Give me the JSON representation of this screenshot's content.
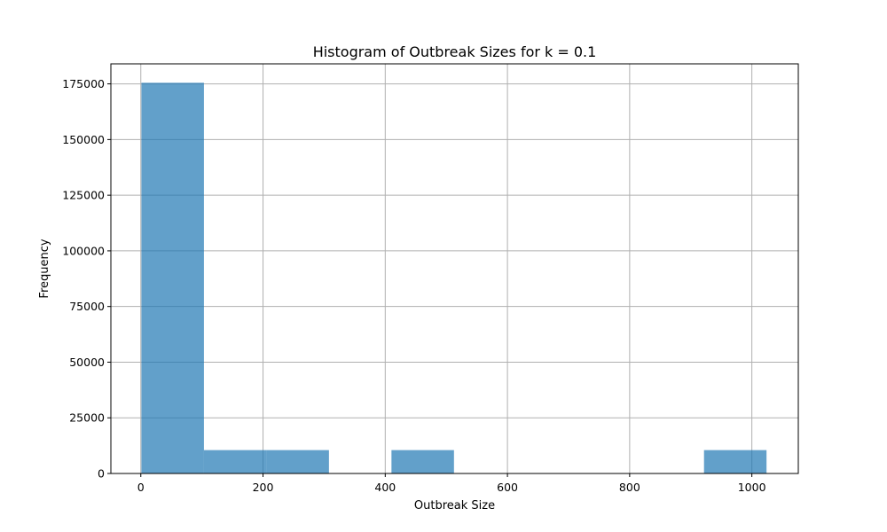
{
  "chart_data": {
    "type": "bar",
    "title": "Histogram of Outbreak Sizes for k = 0.1",
    "xlabel": "Outbreak Size",
    "ylabel": "Frequency",
    "xlim": [
      -49,
      1076
    ],
    "ylim": [
      0,
      184000
    ],
    "xticks": [
      0,
      200,
      400,
      600,
      800,
      1000
    ],
    "yticks": [
      0,
      25000,
      50000,
      75000,
      100000,
      125000,
      150000,
      175000
    ],
    "grid": true,
    "bar_color": "#1f77b4",
    "bar_opacity": 0.7,
    "bins": [
      {
        "x0": 1,
        "x1": 103.3,
        "value": 175500
      },
      {
        "x0": 103.3,
        "x1": 205.6,
        "value": 10500
      },
      {
        "x0": 205.6,
        "x1": 307.9,
        "value": 10500
      },
      {
        "x0": 307.9,
        "x1": 410.2,
        "value": 0
      },
      {
        "x0": 410.2,
        "x1": 512.5,
        "value": 10500
      },
      {
        "x0": 512.5,
        "x1": 614.8,
        "value": 0
      },
      {
        "x0": 614.8,
        "x1": 717.1,
        "value": 0
      },
      {
        "x0": 717.1,
        "x1": 819.4,
        "value": 0
      },
      {
        "x0": 819.4,
        "x1": 921.7,
        "value": 0
      },
      {
        "x0": 921.7,
        "x1": 1024,
        "value": 10500
      }
    ]
  }
}
